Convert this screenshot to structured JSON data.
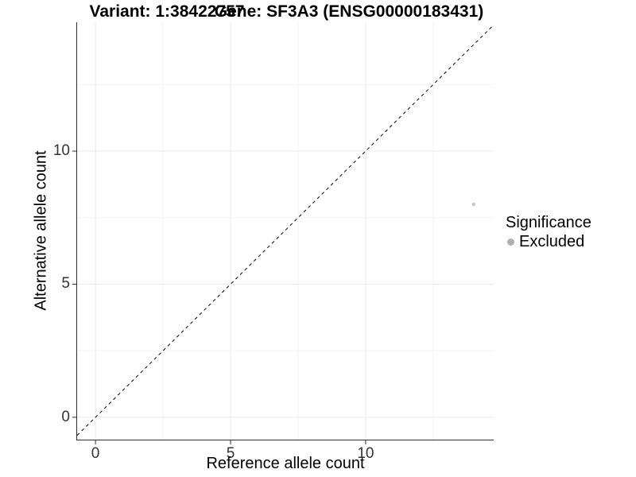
{
  "chart_data": {
    "type": "scatter",
    "title_variant": "Variant: 1:38422757",
    "title_gene": "Gene: SF3A3 (ENSG00000183431)",
    "xlabel": "Reference allele count",
    "ylabel": "Alternative allele count",
    "xlim": [
      -0.68,
      14.74
    ],
    "ylim": [
      -0.84,
      14.84
    ],
    "x_ticks": [
      0,
      5,
      10
    ],
    "y_ticks": [
      0,
      5,
      10
    ],
    "x_minor_ticks": [
      2.5,
      7.5,
      12.5
    ],
    "y_minor_ticks": [
      2.5,
      7.5,
      12.5
    ],
    "grid": true,
    "legend_position": "right",
    "identity_line": {
      "slope": 1,
      "intercept": 0,
      "linestyle": "dashed",
      "color": "#000000"
    },
    "series": [
      {
        "name": "Excluded",
        "color": "#c8c8c8",
        "points": [
          {
            "x": 14,
            "y": 8
          }
        ]
      }
    ],
    "legend": {
      "title": "Significance",
      "items": [
        {
          "label": "Excluded",
          "color": "#b0b0b0"
        }
      ]
    }
  },
  "colors": {
    "background": "#ffffff",
    "axis_line": "#2f2f2f",
    "tick_mark": "#2f2f2f",
    "tick_label": "#333333",
    "grid_major": "#e9e9e9",
    "grid_minor": "#f3f3f3"
  }
}
